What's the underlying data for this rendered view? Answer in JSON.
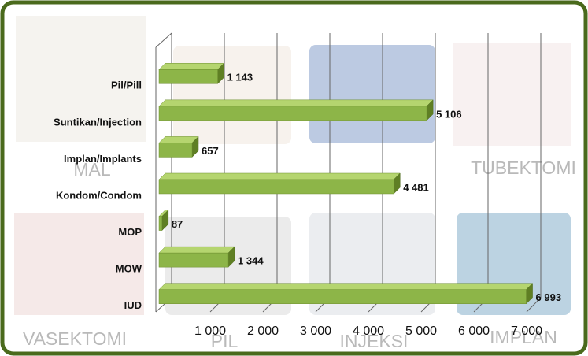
{
  "chart_data": {
    "type": "bar3d",
    "categories": [
      "Pil/Pill",
      "Suntikan/Injection",
      "Implan/Implants",
      "Kondom/Condom",
      "MOP",
      "MOW",
      "IUD"
    ],
    "values": [
      1143,
      5106,
      657,
      4481,
      87,
      1344,
      6993
    ],
    "value_labels": [
      "1 143",
      "5 106",
      "657",
      "4 481",
      "87",
      "1 344",
      "6 993"
    ],
    "color": "#8db548",
    "xlim": [
      0,
      7000
    ],
    "xticks": [
      {
        "value": 1000,
        "label": "1 000"
      },
      {
        "value": 2000,
        "label": "2 000"
      },
      {
        "value": 3000,
        "label": "3 000"
      },
      {
        "value": 4000,
        "label": "4 000"
      },
      {
        "value": 5000,
        "label": "5 000"
      },
      {
        "value": 6000,
        "label": "6 000"
      },
      {
        "value": 7000,
        "label": "7 000"
      }
    ],
    "grid": true,
    "background_labels": [
      "MAL",
      "TUBEKTOMI",
      "VASEKTOMI",
      "PIL",
      "INJEKSI",
      "IMPLAN"
    ]
  }
}
